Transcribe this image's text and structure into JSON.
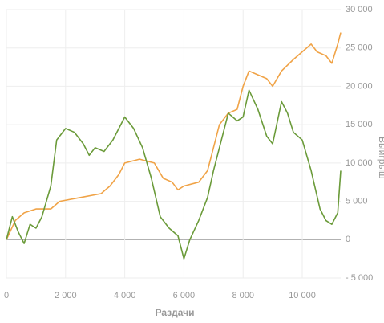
{
  "chart_data": {
    "type": "line",
    "xlabel": "Раздачи",
    "ylabel": "Выигрыш",
    "xlim": [
      0,
      11300
    ],
    "ylim": [
      -5000,
      30000
    ],
    "xticks": [
      0,
      {
        "value": 2000,
        "label": "2 000"
      },
      {
        "value": 4000,
        "label": "4 000"
      },
      {
        "value": 6000,
        "label": "6 000"
      },
      {
        "value": 8000,
        "label": "8 000"
      },
      {
        "value": 10000,
        "label": "10 000"
      }
    ],
    "yticks": [
      {
        "value": -5000,
        "label": "- 5 000"
      },
      0,
      {
        "value": 5000,
        "label": "5 000"
      },
      {
        "value": 10000,
        "label": "10 000"
      },
      {
        "value": 15000,
        "label": "15 000"
      },
      {
        "value": 20000,
        "label": "20 000"
      },
      {
        "value": 25000,
        "label": "25 000"
      },
      {
        "value": 30000,
        "label": "30 000"
      }
    ],
    "grid": true,
    "series": [
      {
        "color": "#f0a347",
        "x": [
          0,
          300,
          600,
          1000,
          1500,
          1800,
          2500,
          3200,
          3500,
          3800,
          4000,
          4500,
          5000,
          5300,
          5600,
          5800,
          6000,
          6500,
          6800,
          7000,
          7200,
          7500,
          7800,
          8000,
          8200,
          8500,
          8800,
          9000,
          9300,
          9700,
          10000,
          10300,
          10500,
          10800,
          11000,
          11200,
          11300
        ],
        "values": [
          0,
          2500,
          3500,
          4000,
          4000,
          5000,
          5500,
          6000,
          7000,
          8500,
          10000,
          10500,
          10000,
          8000,
          7500,
          6500,
          7000,
          7500,
          9000,
          12000,
          15000,
          16500,
          17000,
          20000,
          22000,
          21500,
          21000,
          20000,
          22000,
          23500,
          24500,
          25500,
          24500,
          24000,
          23000,
          25500,
          27000
        ]
      },
      {
        "color": "#6b9b3a",
        "x": [
          0,
          200,
          400,
          600,
          800,
          1000,
          1200,
          1500,
          1700,
          2000,
          2300,
          2600,
          2800,
          3000,
          3300,
          3600,
          4000,
          4300,
          4600,
          4900,
          5200,
          5500,
          5800,
          6000,
          6200,
          6500,
          6800,
          7000,
          7200,
          7500,
          7800,
          8000,
          8200,
          8500,
          8800,
          9000,
          9300,
          9500,
          9700,
          10000,
          10300,
          10600,
          10800,
          11000,
          11200,
          11300
        ],
        "values": [
          0,
          3000,
          1000,
          -500,
          2000,
          1500,
          3000,
          7000,
          13000,
          14500,
          14000,
          12500,
          11000,
          12000,
          11500,
          13000,
          16000,
          14500,
          12000,
          8000,
          3000,
          1500,
          500,
          -2500,
          0,
          2500,
          5500,
          9000,
          12000,
          16500,
          15500,
          16000,
          19500,
          17000,
          13500,
          12500,
          18000,
          16500,
          14000,
          13000,
          9000,
          4000,
          2500,
          2000,
          3500,
          9000
        ]
      }
    ]
  }
}
